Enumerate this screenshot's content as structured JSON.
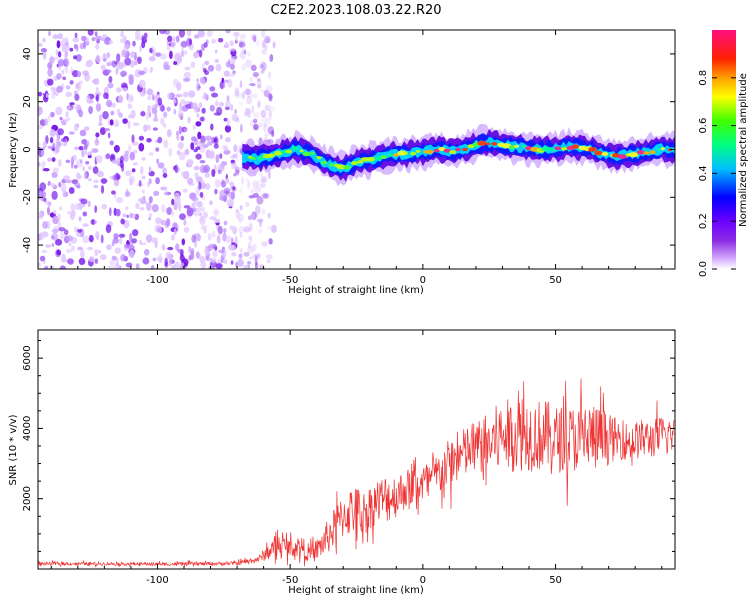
{
  "title": "C2E2.2023.108.03.22.R20",
  "chart_data": [
    {
      "type": "heatmap",
      "xlabel": "Height of straight line (km)",
      "ylabel": "Frequency (Hz)",
      "xlim": [
        -145,
        95
      ],
      "ylim": [
        -50,
        50
      ],
      "xticks": [
        -100,
        -50,
        0,
        50
      ],
      "yticks": [
        -40,
        -20,
        0,
        20,
        40
      ],
      "description_points": {
        "noise_region_x": [
          -145,
          -62
        ],
        "signal_line": [
          [
            -68,
            -3
          ],
          [
            -62,
            -4
          ],
          [
            -55,
            -2
          ],
          [
            -48,
            0
          ],
          [
            -42,
            -2
          ],
          [
            -36,
            -6
          ],
          [
            -30,
            -8
          ],
          [
            -24,
            -5
          ],
          [
            -18,
            -4
          ],
          [
            -12,
            -2
          ],
          [
            -6,
            -2
          ],
          [
            0,
            -1
          ],
          [
            6,
            0
          ],
          [
            12,
            -1
          ],
          [
            18,
            1
          ],
          [
            24,
            3
          ],
          [
            30,
            2
          ],
          [
            36,
            1
          ],
          [
            42,
            0
          ],
          [
            48,
            0
          ],
          [
            54,
            1
          ],
          [
            60,
            1
          ],
          [
            66,
            -1
          ],
          [
            72,
            -3
          ],
          [
            78,
            -2
          ],
          [
            84,
            -1
          ],
          [
            90,
            0
          ],
          [
            95,
            0
          ]
        ]
      },
      "colorbar": {
        "label": "Normalized spectral amplitude",
        "ticks": [
          "0.0",
          "0.2",
          "0.4",
          "0.6",
          "0.8"
        ],
        "tick_values": [
          0.0,
          0.2,
          0.4,
          0.6,
          0.8
        ],
        "range": [
          0,
          1
        ]
      }
    },
    {
      "type": "line",
      "xlabel": "Height of straight line (km)",
      "ylabel": "SNR (10 * v/v)",
      "xlim": [
        -145,
        95
      ],
      "ylim": [
        0,
        6800
      ],
      "xticks": [
        -100,
        -50,
        0,
        50
      ],
      "yticks": [
        2000,
        4000,
        6000
      ],
      "color": "#ee3333",
      "series": [
        {
          "name": "SNR",
          "x": [
            -145,
            -120,
            -95,
            -70,
            -62,
            -58,
            -54,
            -50,
            -46,
            -42,
            -38,
            -34,
            -30,
            -26,
            -22,
            -18,
            -14,
            -10,
            -6,
            -2,
            2,
            6,
            10,
            14,
            18,
            22,
            26,
            30,
            34,
            38,
            42,
            46,
            50,
            54,
            58,
            62,
            66,
            70,
            74,
            78,
            82,
            86,
            90,
            95
          ],
          "y": [
            150,
            150,
            140,
            160,
            280,
            500,
            700,
            600,
            650,
            400,
            700,
            1100,
            1500,
            1700,
            1600,
            1900,
            2000,
            2100,
            2300,
            2400,
            2500,
            2700,
            3000,
            3200,
            3400,
            3500,
            3600,
            3800,
            3800,
            3900,
            3800,
            3800,
            3700,
            3700,
            3700,
            3800,
            3700,
            3700,
            3700,
            3600,
            3700,
            3700,
            3800,
            3800
          ],
          "spread": [
            60,
            60,
            60,
            70,
            120,
            300,
            400,
            300,
            400,
            300,
            500,
            700,
            800,
            900,
            800,
            800,
            900,
            800,
            700,
            700,
            700,
            800,
            900,
            900,
            1000,
            1000,
            1200,
            1300,
            1300,
            1400,
            1300,
            1300,
            1200,
            1200,
            1200,
            1300,
            1200,
            900,
            700,
            700,
            700,
            700,
            700,
            600
          ]
        }
      ]
    }
  ]
}
